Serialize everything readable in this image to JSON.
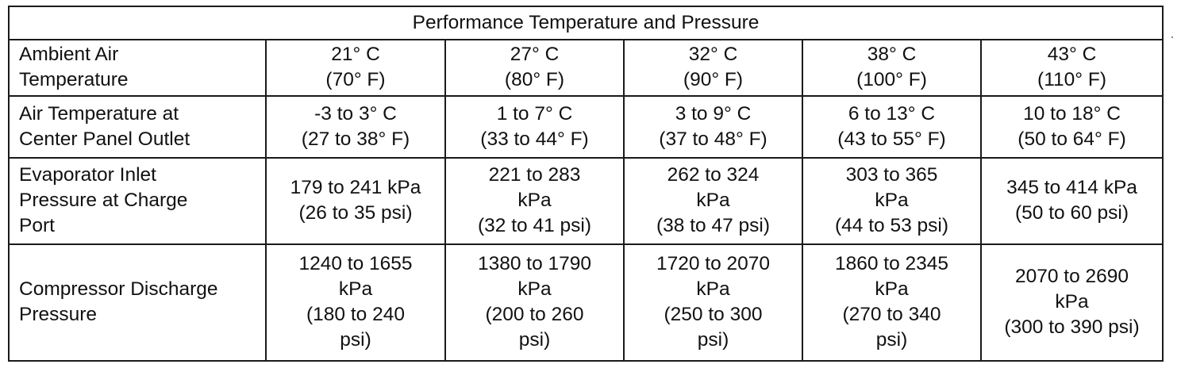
{
  "table": {
    "title": "Performance Temperature and Pressure",
    "rows": [
      {
        "label": [
          "Ambient Air",
          "Temperature"
        ],
        "cells": [
          [
            "21° C",
            "(70° F)"
          ],
          [
            "27° C",
            "(80° F)"
          ],
          [
            "32° C",
            "(90° F)"
          ],
          [
            "38° C",
            "(100° F)"
          ],
          [
            "43° C",
            "(110° F)"
          ]
        ]
      },
      {
        "label": [
          "Air Temperature at",
          "Center Panel Outlet"
        ],
        "cells": [
          [
            "-3 to 3° C",
            "(27 to 38° F)"
          ],
          [
            "1 to 7° C",
            "(33 to 44° F)"
          ],
          [
            "3 to 9° C",
            "(37 to 48° F)"
          ],
          [
            "6 to 13° C",
            "(43 to 55° F)"
          ],
          [
            "10 to 18° C",
            "(50 to 64° F)"
          ]
        ]
      },
      {
        "label": [
          "Evaporator Inlet",
          "Pressure at Charge",
          "Port"
        ],
        "cells": [
          [
            "179 to 241 kPa",
            "(26 to 35 psi)"
          ],
          [
            "221 to 283",
            "kPa",
            "(32 to 41 psi)"
          ],
          [
            "262 to 324",
            "kPa",
            "(38 to 47 psi)"
          ],
          [
            "303 to 365",
            "kPa",
            "(44 to 53 psi)"
          ],
          [
            "345 to 414 kPa",
            "(50 to 60 psi)"
          ]
        ]
      },
      {
        "label": [
          "Compressor Discharge",
          "Pressure"
        ],
        "cells": [
          [
            "1240 to 1655",
            "kPa",
            "(180 to 240",
            "psi)"
          ],
          [
            "1380 to 1790",
            "kPa",
            "(200 to 260",
            "psi)"
          ],
          [
            "1720 to 2070",
            "kPa",
            "(250 to 300",
            "psi)"
          ],
          [
            "1860 to 2345",
            "kPa",
            "(270 to 340",
            "psi)"
          ],
          [
            "2070 to 2690",
            "kPa",
            "(300 to 390 psi)"
          ]
        ]
      }
    ]
  }
}
